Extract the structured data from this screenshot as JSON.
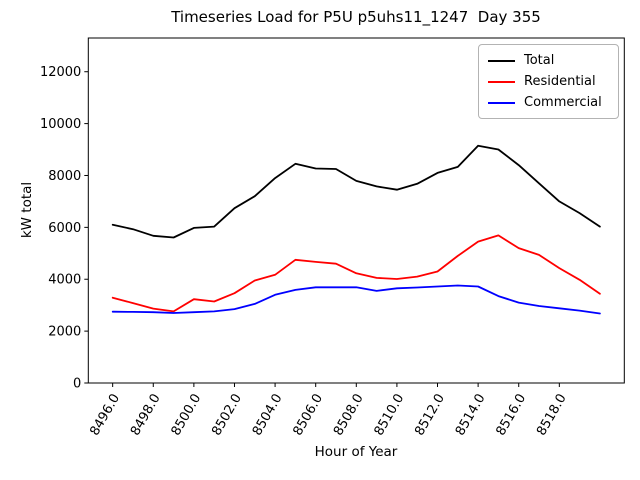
{
  "chart_data": {
    "type": "line",
    "title": "Timeseries Load for P5U p5uhs11_1247  Day 355",
    "xlabel": "Hour of Year",
    "ylabel": "kW total",
    "xlim": [
      8494.8,
      8521.2
    ],
    "ylim": [
      0,
      13300
    ],
    "grid": false,
    "background": "#ffffff",
    "x": [
      8496,
      8497,
      8498,
      8499,
      8500,
      8501,
      8502,
      8503,
      8504,
      8505,
      8506,
      8507,
      8508,
      8509,
      8510,
      8511,
      8512,
      8513,
      8514,
      8515,
      8516,
      8517,
      8518,
      8519,
      8520
    ],
    "series": [
      {
        "name": "Total",
        "color": "#000000",
        "values": [
          6100,
          5930,
          5675,
          5610,
          5980,
          6030,
          6740,
          7200,
          7900,
          8450,
          8270,
          8250,
          7790,
          7580,
          7450,
          7680,
          8100,
          8330,
          9150,
          9000,
          8400,
          7700,
          7000,
          6550,
          6030
        ]
      },
      {
        "name": "Residential",
        "color": "#ff0000",
        "values": [
          3290,
          3080,
          2870,
          2760,
          3230,
          3140,
          3460,
          3950,
          4170,
          4750,
          4670,
          4600,
          4230,
          4050,
          4010,
          4100,
          4300,
          4900,
          5450,
          5690,
          5200,
          4940,
          4430,
          3980,
          3440
        ]
      },
      {
        "name": "Commercial",
        "color": "#0000ff",
        "values": [
          2750,
          2740,
          2730,
          2700,
          2730,
          2760,
          2850,
          3050,
          3400,
          3590,
          3690,
          3690,
          3690,
          3550,
          3650,
          3680,
          3720,
          3760,
          3720,
          3350,
          3100,
          2970,
          2880,
          2790,
          2680
        ]
      }
    ],
    "xticks": {
      "values": [
        8496,
        8498,
        8500,
        8502,
        8504,
        8506,
        8508,
        8510,
        8512,
        8514,
        8516,
        8518
      ],
      "labels": [
        "8496.0",
        "8498.0",
        "8500.0",
        "8502.0",
        "8504.0",
        "8506.0",
        "8508.0",
        "8510.0",
        "8512.0",
        "8514.0",
        "8516.0",
        "8518.0"
      ],
      "rotation": 60
    },
    "yticks": {
      "values": [
        0,
        2000,
        4000,
        6000,
        8000,
        10000,
        12000
      ],
      "labels": [
        "0",
        "2000",
        "4000",
        "6000",
        "8000",
        "10000",
        "12000"
      ]
    },
    "legend": {
      "position": "upper right"
    }
  }
}
